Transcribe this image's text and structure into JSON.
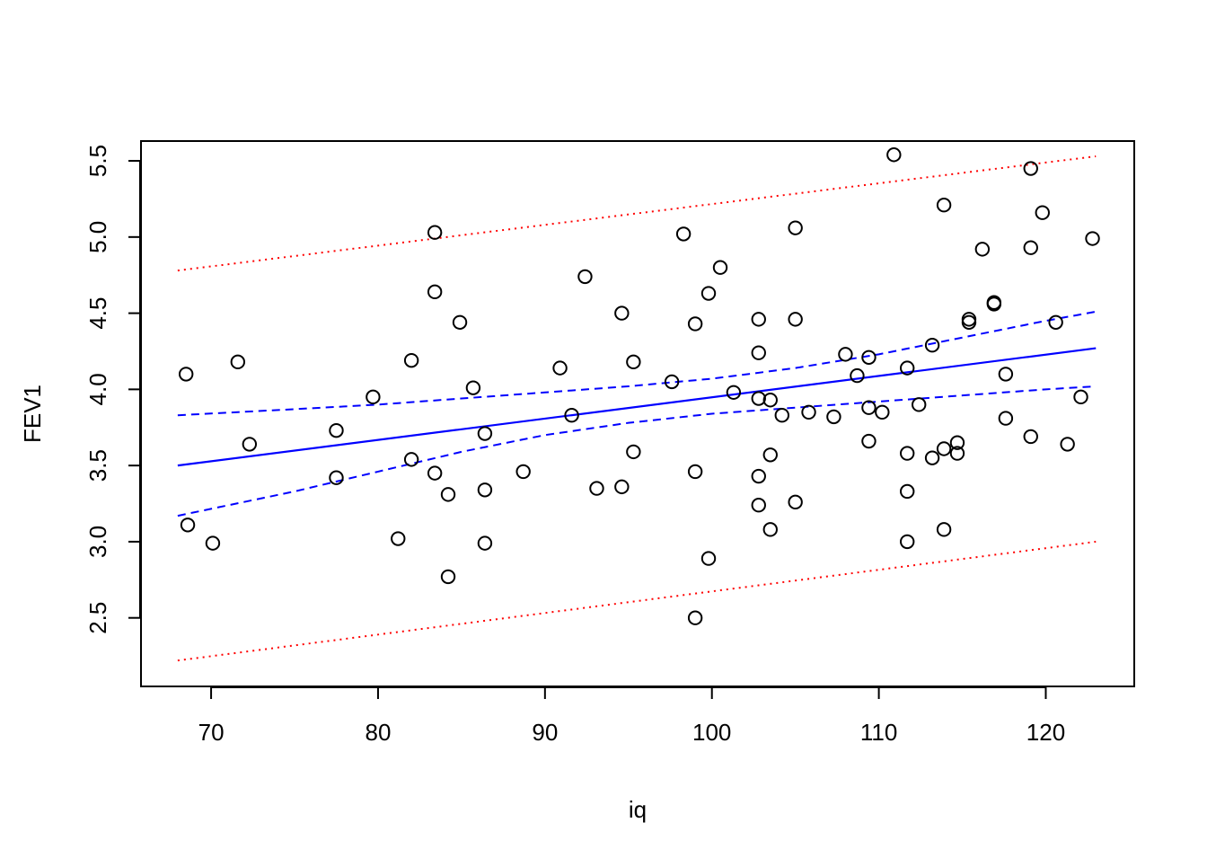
{
  "chart_data": {
    "type": "scatter",
    "title": "",
    "xlabel": "iq",
    "ylabel": "FEV1",
    "xlim": [
      65.8,
      125.3
    ],
    "ylim": [
      2.05,
      5.63
    ],
    "x_ticks": [
      70,
      80,
      90,
      100,
      110,
      120
    ],
    "x_tick_labels": [
      "70",
      "80",
      "90",
      "100",
      "110",
      "120"
    ],
    "y_ticks": [
      2.5,
      3.0,
      3.5,
      4.0,
      4.5,
      5.0,
      5.5
    ],
    "y_tick_labels": [
      "2.5",
      "3.0",
      "3.5",
      "4.0",
      "4.5",
      "5.0",
      "5.5"
    ],
    "grid": false,
    "legend": "none",
    "colors": {
      "points": "#000000",
      "fit": "#0000ff",
      "confidence_band": "#0000ff",
      "prediction_band": "#ff0000"
    },
    "points": [
      {
        "x": 68.5,
        "y": 4.1
      },
      {
        "x": 68.6,
        "y": 3.11
      },
      {
        "x": 70.1,
        "y": 2.99
      },
      {
        "x": 71.6,
        "y": 4.18
      },
      {
        "x": 72.3,
        "y": 3.64
      },
      {
        "x": 77.5,
        "y": 3.73
      },
      {
        "x": 77.5,
        "y": 3.42
      },
      {
        "x": 79.7,
        "y": 3.95
      },
      {
        "x": 81.2,
        "y": 3.02
      },
      {
        "x": 82.0,
        "y": 4.19
      },
      {
        "x": 82.0,
        "y": 3.54
      },
      {
        "x": 83.4,
        "y": 5.03
      },
      {
        "x": 83.4,
        "y": 4.64
      },
      {
        "x": 83.4,
        "y": 3.45
      },
      {
        "x": 84.2,
        "y": 3.31
      },
      {
        "x": 84.2,
        "y": 2.77
      },
      {
        "x": 84.9,
        "y": 4.44
      },
      {
        "x": 85.7,
        "y": 4.01
      },
      {
        "x": 86.4,
        "y": 3.71
      },
      {
        "x": 86.4,
        "y": 3.34
      },
      {
        "x": 86.4,
        "y": 2.99
      },
      {
        "x": 88.7,
        "y": 3.46
      },
      {
        "x": 90.9,
        "y": 4.14
      },
      {
        "x": 91.6,
        "y": 3.83
      },
      {
        "x": 92.4,
        "y": 4.74
      },
      {
        "x": 93.1,
        "y": 3.35
      },
      {
        "x": 94.6,
        "y": 4.5
      },
      {
        "x": 94.6,
        "y": 3.36
      },
      {
        "x": 95.3,
        "y": 4.18
      },
      {
        "x": 95.3,
        "y": 3.59
      },
      {
        "x": 97.6,
        "y": 4.05
      },
      {
        "x": 98.3,
        "y": 5.02
      },
      {
        "x": 99.0,
        "y": 4.43
      },
      {
        "x": 99.0,
        "y": 3.46
      },
      {
        "x": 99.0,
        "y": 2.5
      },
      {
        "x": 99.8,
        "y": 4.63
      },
      {
        "x": 99.8,
        "y": 2.89
      },
      {
        "x": 100.5,
        "y": 4.8
      },
      {
        "x": 101.3,
        "y": 3.98
      },
      {
        "x": 102.8,
        "y": 4.46
      },
      {
        "x": 102.8,
        "y": 4.24
      },
      {
        "x": 102.8,
        "y": 3.94
      },
      {
        "x": 102.8,
        "y": 3.43
      },
      {
        "x": 102.8,
        "y": 3.24
      },
      {
        "x": 103.5,
        "y": 3.93
      },
      {
        "x": 103.5,
        "y": 3.57
      },
      {
        "x": 103.5,
        "y": 3.08
      },
      {
        "x": 104.2,
        "y": 3.83
      },
      {
        "x": 105.0,
        "y": 5.06
      },
      {
        "x": 105.0,
        "y": 4.46
      },
      {
        "x": 105.0,
        "y": 3.26
      },
      {
        "x": 105.8,
        "y": 3.85
      },
      {
        "x": 107.3,
        "y": 3.82
      },
      {
        "x": 108.0,
        "y": 4.23
      },
      {
        "x": 108.7,
        "y": 4.09
      },
      {
        "x": 109.4,
        "y": 4.21
      },
      {
        "x": 109.4,
        "y": 3.88
      },
      {
        "x": 109.4,
        "y": 3.66
      },
      {
        "x": 110.2,
        "y": 3.85
      },
      {
        "x": 110.9,
        "y": 5.54
      },
      {
        "x": 111.7,
        "y": 4.14
      },
      {
        "x": 111.7,
        "y": 3.58
      },
      {
        "x": 111.7,
        "y": 3.33
      },
      {
        "x": 111.7,
        "y": 3.0
      },
      {
        "x": 112.4,
        "y": 3.9
      },
      {
        "x": 113.2,
        "y": 4.29
      },
      {
        "x": 113.2,
        "y": 3.55
      },
      {
        "x": 113.9,
        "y": 5.21
      },
      {
        "x": 113.9,
        "y": 3.61
      },
      {
        "x": 113.9,
        "y": 3.08
      },
      {
        "x": 114.7,
        "y": 3.65
      },
      {
        "x": 114.7,
        "y": 3.58
      },
      {
        "x": 115.4,
        "y": 4.46
      },
      {
        "x": 115.4,
        "y": 4.44
      },
      {
        "x": 116.2,
        "y": 4.92
      },
      {
        "x": 116.9,
        "y": 4.57
      },
      {
        "x": 116.9,
        "y": 4.56
      },
      {
        "x": 117.6,
        "y": 4.1
      },
      {
        "x": 117.6,
        "y": 3.81
      },
      {
        "x": 119.1,
        "y": 5.45
      },
      {
        "x": 119.1,
        "y": 4.93
      },
      {
        "x": 119.1,
        "y": 3.69
      },
      {
        "x": 119.8,
        "y": 5.16
      },
      {
        "x": 120.6,
        "y": 4.44
      },
      {
        "x": 121.3,
        "y": 3.64
      },
      {
        "x": 122.1,
        "y": 3.95
      },
      {
        "x": 122.8,
        "y": 4.99
      }
    ],
    "fit_line": [
      {
        "x": 68.0,
        "y": 3.5
      },
      {
        "x": 123.0,
        "y": 4.27
      }
    ],
    "confidence_upper": [
      {
        "x": 68,
        "y": 3.83
      },
      {
        "x": 75,
        "y": 3.87
      },
      {
        "x": 80,
        "y": 3.9
      },
      {
        "x": 85,
        "y": 3.94
      },
      {
        "x": 90,
        "y": 3.98
      },
      {
        "x": 95,
        "y": 4.02
      },
      {
        "x": 100,
        "y": 4.07
      },
      {
        "x": 105,
        "y": 4.14
      },
      {
        "x": 110,
        "y": 4.23
      },
      {
        "x": 115,
        "y": 4.34
      },
      {
        "x": 120,
        "y": 4.45
      },
      {
        "x": 123,
        "y": 4.51
      }
    ],
    "confidence_lower": [
      {
        "x": 68,
        "y": 3.17
      },
      {
        "x": 75,
        "y": 3.33
      },
      {
        "x": 80,
        "y": 3.46
      },
      {
        "x": 85,
        "y": 3.59
      },
      {
        "x": 90,
        "y": 3.7
      },
      {
        "x": 95,
        "y": 3.78
      },
      {
        "x": 100,
        "y": 3.84
      },
      {
        "x": 105,
        "y": 3.88
      },
      {
        "x": 110,
        "y": 3.92
      },
      {
        "x": 115,
        "y": 3.96
      },
      {
        "x": 120,
        "y": 4.0
      },
      {
        "x": 123,
        "y": 4.02
      }
    ],
    "prediction_upper": [
      {
        "x": 68.0,
        "y": 4.78
      },
      {
        "x": 123.0,
        "y": 5.53
      }
    ],
    "prediction_lower": [
      {
        "x": 68.0,
        "y": 2.22
      },
      {
        "x": 123.0,
        "y": 3.0
      }
    ]
  }
}
